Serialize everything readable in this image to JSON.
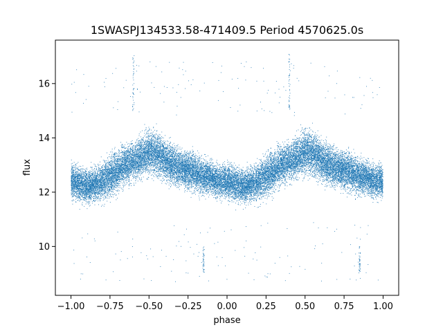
{
  "chart_data": {
    "type": "scatter",
    "title": "1SWASPJ134533.58-471409.5 Period 4570625.0s",
    "xlabel": "phase",
    "ylabel": "flux",
    "xlim": [
      -1.1,
      1.1
    ],
    "ylim": [
      8.2,
      17.6
    ],
    "xticks": [
      -1.0,
      -0.75,
      -0.5,
      -0.25,
      0.0,
      0.25,
      0.5,
      0.75,
      1.0
    ],
    "xtick_labels": [
      "−1.00",
      "−0.75",
      "−0.50",
      "−0.25",
      "0.00",
      "0.25",
      "0.50",
      "0.75",
      "1.00"
    ],
    "yticks": [
      10,
      12,
      14,
      16
    ],
    "ytick_labels": [
      "10",
      "12",
      "14",
      "16"
    ],
    "grid": false,
    "marker_color": "#1f77b4",
    "series": [
      {
        "phase_profile": {
          "x": [
            0.0,
            0.05,
            0.1,
            0.15,
            0.2,
            0.25,
            0.3,
            0.35,
            0.4,
            0.45,
            0.5,
            0.55,
            0.6,
            0.65,
            0.7,
            0.75,
            0.8,
            0.85,
            0.9,
            0.95,
            1.0
          ],
          "mean_flux": [
            12.4,
            12.3,
            12.2,
            12.3,
            12.4,
            12.6,
            12.8,
            13.0,
            13.1,
            13.3,
            13.5,
            13.4,
            13.2,
            13.0,
            12.9,
            12.8,
            12.7,
            12.6,
            12.5,
            12.4,
            12.4
          ],
          "spread": [
            0.9,
            0.9,
            0.9,
            0.9,
            1.0,
            1.1,
            1.1,
            1.0,
            1.0,
            1.1,
            1.2,
            1.2,
            1.1,
            1.1,
            1.0,
            1.0,
            1.0,
            0.9,
            0.9,
            0.9,
            0.9
          ]
        },
        "outlier_columns": [
          {
            "x": -0.6,
            "y_range": [
              15.0,
              17.1
            ]
          },
          {
            "x": 0.4,
            "y_range": [
              15.0,
              17.1
            ]
          },
          {
            "x": -0.15,
            "y_range": [
              9.0,
              10.0
            ]
          },
          {
            "x": 0.85,
            "y_range": [
              9.0,
              10.0
            ]
          }
        ],
        "point_count": 12000
      }
    ]
  }
}
